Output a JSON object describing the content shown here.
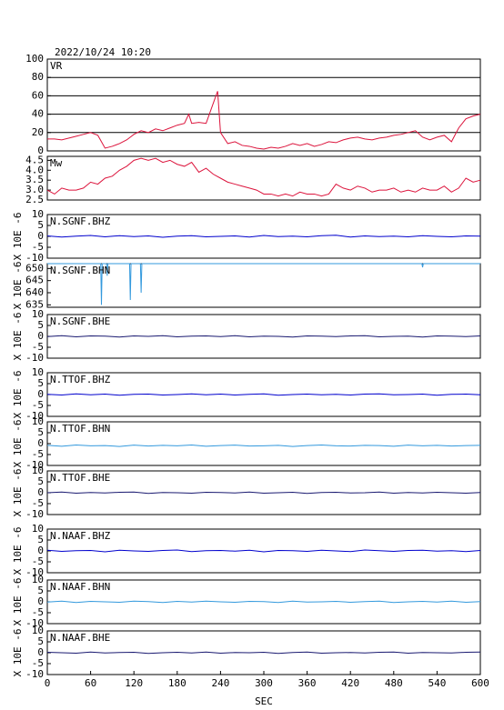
{
  "chart_data": [
    {
      "type": "line",
      "title": "2022/10/24 10:20",
      "xlim": [
        0,
        600
      ],
      "ylim": [
        0,
        100
      ],
      "yticks": [
        0,
        20,
        40,
        60,
        80,
        100
      ],
      "grid": true,
      "x": [
        0,
        10,
        20,
        30,
        40,
        50,
        60,
        70,
        80,
        90,
        100,
        110,
        120,
        130,
        140,
        150,
        160,
        170,
        180,
        190,
        196,
        200,
        210,
        220,
        230,
        236,
        240,
        250,
        260,
        270,
        280,
        290,
        300,
        310,
        320,
        330,
        340,
        350,
        360,
        370,
        380,
        390,
        400,
        410,
        420,
        430,
        440,
        450,
        460,
        470,
        480,
        490,
        500,
        510,
        520,
        530,
        540,
        550,
        560,
        570,
        580,
        590,
        600
      ],
      "series": [
        {
          "name": "VR",
          "color": "#dc143c",
          "values": [
            13,
            13,
            12,
            14,
            16,
            18,
            20,
            17,
            3,
            5,
            8,
            12,
            18,
            22,
            20,
            24,
            22,
            25,
            28,
            30,
            40,
            30,
            31,
            30,
            52,
            65,
            20,
            8,
            10,
            6,
            5,
            3,
            2,
            4,
            3,
            5,
            8,
            6,
            8,
            5,
            7,
            10,
            9,
            12,
            14,
            15,
            13,
            12,
            14,
            15,
            17,
            18,
            20,
            22,
            15,
            12,
            15,
            17,
            10,
            25,
            35,
            38,
            40
          ]
        }
      ]
    },
    {
      "type": "line",
      "xlim": [
        0,
        600
      ],
      "ylim": [
        2.5,
        4.7
      ],
      "yticks": [
        {
          "value": 2.5,
          "label": "2.5"
        },
        {
          "value": 3.0,
          "label": "3.0"
        },
        {
          "value": 3.5,
          "label": "3.5"
        },
        {
          "value": 4.0,
          "label": "4.0"
        },
        {
          "value": 4.5,
          "label": "4.5"
        }
      ],
      "x": [
        0,
        10,
        20,
        30,
        40,
        50,
        60,
        70,
        80,
        90,
        100,
        110,
        120,
        130,
        140,
        150,
        160,
        170,
        180,
        190,
        200,
        210,
        220,
        230,
        240,
        250,
        260,
        270,
        280,
        290,
        300,
        310,
        320,
        330,
        340,
        350,
        360,
        370,
        380,
        390,
        400,
        410,
        420,
        430,
        440,
        450,
        460,
        470,
        480,
        490,
        500,
        510,
        520,
        530,
        540,
        550,
        560,
        570,
        580,
        590,
        600
      ],
      "series": [
        {
          "name": "Mw",
          "color": "#dc143c",
          "values": [
            3.0,
            2.8,
            3.1,
            3.0,
            3.0,
            3.1,
            3.4,
            3.3,
            3.6,
            3.7,
            4.0,
            4.2,
            4.5,
            4.6,
            4.5,
            4.6,
            4.4,
            4.5,
            4.3,
            4.2,
            4.4,
            3.9,
            4.1,
            3.8,
            3.6,
            3.4,
            3.3,
            3.2,
            3.1,
            3.0,
            2.8,
            2.8,
            2.7,
            2.8,
            2.7,
            2.9,
            2.8,
            2.8,
            2.7,
            2.8,
            3.3,
            3.1,
            3.0,
            3.2,
            3.1,
            2.9,
            3.0,
            3.0,
            3.1,
            2.9,
            3.0,
            2.9,
            3.1,
            3.0,
            3.0,
            3.2,
            2.9,
            3.1,
            3.6,
            3.4,
            3.5
          ]
        }
      ]
    },
    {
      "type": "line",
      "xlim": [
        0,
        600
      ],
      "ylim": [
        -10,
        10
      ],
      "yticks": [
        -10,
        -5,
        0,
        5,
        10
      ],
      "ylabel": "X 10E -6",
      "x": [
        0,
        20,
        40,
        60,
        80,
        100,
        120,
        140,
        160,
        180,
        200,
        220,
        240,
        260,
        280,
        300,
        320,
        340,
        360,
        380,
        400,
        420,
        440,
        460,
        480,
        500,
        520,
        540,
        560,
        580,
        600
      ],
      "series": [
        {
          "name": "N.SGNF.BHZ",
          "color": "#0000cd",
          "values": [
            0.2,
            -0.3,
            0.1,
            0.4,
            -0.2,
            0.3,
            -0.1,
            0.2,
            -0.4,
            0.1,
            0.3,
            -0.2,
            0.0,
            0.2,
            -0.3,
            0.4,
            -0.1,
            0.1,
            -0.2,
            0.3,
            0.5,
            -0.3,
            0.2,
            -0.1,
            0.1,
            -0.2,
            0.3,
            0.0,
            -0.2,
            0.2,
            0.1
          ]
        }
      ]
    },
    {
      "type": "line",
      "xlim": [
        0,
        600
      ],
      "ylim": [
        634,
        652
      ],
      "yticks": [
        635,
        640,
        645,
        650
      ],
      "ylabel": "X 10E -6",
      "x": [
        0,
        74,
        75,
        76,
        82,
        83,
        84,
        114,
        115,
        116,
        129,
        130,
        131,
        519,
        520,
        521,
        600
      ],
      "series": [
        {
          "name": "N.SGNF.BHN",
          "color": "#3399dd",
          "values": [
            652,
            652,
            635,
            652,
            652,
            647,
            652,
            652,
            637,
            652,
            652,
            640,
            652,
            652,
            650.5,
            652,
            652
          ]
        }
      ]
    },
    {
      "type": "line",
      "xlim": [
        0,
        600
      ],
      "ylim": [
        -10,
        10
      ],
      "yticks": [
        -10,
        -5,
        0,
        5,
        10
      ],
      "ylabel": "X 10E -6",
      "x": [
        0,
        20,
        40,
        60,
        80,
        100,
        120,
        140,
        160,
        180,
        200,
        220,
        240,
        260,
        280,
        300,
        320,
        340,
        360,
        380,
        400,
        420,
        440,
        460,
        480,
        500,
        520,
        540,
        560,
        580,
        600
      ],
      "series": [
        {
          "name": "N.SGNF.BHE",
          "color": "#191970",
          "values": [
            -0.1,
            0.3,
            -0.2,
            0.2,
            0.1,
            -0.3,
            0.2,
            0.0,
            0.3,
            -0.2,
            0.1,
            0.2,
            -0.1,
            0.3,
            -0.2,
            0.1,
            0.0,
            -0.3,
            0.2,
            0.1,
            -0.1,
            0.2,
            0.3,
            -0.2,
            0.0,
            0.1,
            -0.3,
            0.2,
            0.1,
            -0.1,
            0.2
          ]
        }
      ]
    },
    {
      "type": "line",
      "xlim": [
        0,
        600
      ],
      "ylim": [
        -10,
        10
      ],
      "yticks": [
        -10,
        -5,
        0,
        5,
        10
      ],
      "ylabel": "X 10E -6",
      "x": [
        0,
        20,
        40,
        60,
        80,
        100,
        120,
        140,
        160,
        180,
        200,
        220,
        240,
        260,
        280,
        300,
        320,
        340,
        360,
        380,
        400,
        420,
        440,
        460,
        480,
        500,
        520,
        540,
        560,
        580,
        600
      ],
      "series": [
        {
          "name": "N.TTOF.BHZ",
          "color": "#0000cd",
          "values": [
            0.1,
            -0.2,
            0.3,
            -0.1,
            0.2,
            -0.3,
            0.1,
            0.2,
            -0.2,
            0.0,
            0.3,
            -0.1,
            0.2,
            -0.2,
            0.1,
            0.3,
            -0.3,
            0.0,
            0.2,
            -0.1,
            0.1,
            -0.2,
            0.2,
            0.3,
            -0.1,
            0.0,
            0.2,
            -0.3,
            0.1,
            0.2,
            -0.1
          ]
        }
      ]
    },
    {
      "type": "line",
      "xlim": [
        0,
        600
      ],
      "ylim": [
        -10,
        10
      ],
      "yticks": [
        -10,
        -5,
        0,
        5,
        10
      ],
      "ylabel": "X 10E -6",
      "x": [
        0,
        20,
        40,
        60,
        80,
        100,
        120,
        140,
        160,
        180,
        200,
        220,
        240,
        260,
        280,
        300,
        320,
        340,
        360,
        380,
        400,
        420,
        440,
        460,
        480,
        500,
        520,
        540,
        560,
        580,
        600
      ],
      "series": [
        {
          "name": "N.TTOF.BHN",
          "color": "#3399dd",
          "values": [
            -0.8,
            -1.2,
            -0.6,
            -1.0,
            -0.9,
            -1.3,
            -0.7,
            -1.1,
            -0.8,
            -1.0,
            -0.6,
            -1.2,
            -0.9,
            -0.7,
            -1.1,
            -1.0,
            -0.8,
            -1.3,
            -0.9,
            -0.6,
            -1.0,
            -1.1,
            -0.8,
            -0.9,
            -1.2,
            -0.7,
            -1.0,
            -0.8,
            -1.1,
            -0.9,
            -0.8
          ]
        }
      ]
    },
    {
      "type": "line",
      "xlim": [
        0,
        600
      ],
      "ylim": [
        -10,
        10
      ],
      "yticks": [
        -10,
        -5,
        0,
        5,
        10
      ],
      "ylabel": "X 10E -6",
      "x": [
        0,
        20,
        40,
        60,
        80,
        100,
        120,
        140,
        160,
        180,
        200,
        220,
        240,
        260,
        280,
        300,
        320,
        340,
        360,
        380,
        400,
        420,
        440,
        460,
        480,
        500,
        520,
        540,
        560,
        580,
        600
      ],
      "series": [
        {
          "name": "N.TTOF.BHE",
          "color": "#191970",
          "values": [
            0.0,
            0.3,
            -0.2,
            0.1,
            -0.1,
            0.2,
            0.3,
            -0.3,
            0.1,
            0.0,
            -0.2,
            0.2,
            0.1,
            -0.1,
            0.3,
            -0.2,
            0.0,
            0.2,
            -0.3,
            0.1,
            0.2,
            -0.1,
            0.0,
            0.3,
            -0.2,
            0.1,
            -0.1,
            0.2,
            0.0,
            -0.2,
            0.1
          ]
        }
      ]
    },
    {
      "type": "line",
      "xlim": [
        0,
        600
      ],
      "ylim": [
        -10,
        10
      ],
      "yticks": [
        -10,
        -5,
        0,
        5,
        10
      ],
      "ylabel": "X 10E -6",
      "x": [
        0,
        20,
        40,
        60,
        80,
        100,
        120,
        140,
        160,
        180,
        200,
        220,
        240,
        260,
        280,
        300,
        320,
        340,
        360,
        380,
        400,
        420,
        440,
        460,
        480,
        500,
        520,
        540,
        560,
        580,
        600
      ],
      "series": [
        {
          "name": "N.NAAF.BHZ",
          "color": "#0000cd",
          "values": [
            0.3,
            -0.2,
            0.1,
            0.2,
            -0.4,
            0.3,
            0.0,
            -0.2,
            0.2,
            0.4,
            -0.3,
            0.1,
            0.2,
            -0.1,
            0.3,
            -0.4,
            0.2,
            0.1,
            -0.2,
            0.3,
            0.0,
            -0.3,
            0.4,
            0.1,
            -0.2,
            0.2,
            0.3,
            -0.1,
            0.1,
            -0.3,
            0.2
          ]
        }
      ]
    },
    {
      "type": "line",
      "xlim": [
        0,
        600
      ],
      "ylim": [
        -10,
        10
      ],
      "yticks": [
        -10,
        -5,
        0,
        5,
        10
      ],
      "ylabel": "X 10E -6",
      "x": [
        0,
        20,
        40,
        60,
        80,
        100,
        120,
        140,
        160,
        180,
        200,
        220,
        240,
        260,
        280,
        300,
        320,
        340,
        360,
        380,
        400,
        420,
        440,
        460,
        480,
        500,
        520,
        540,
        560,
        580,
        600
      ],
      "series": [
        {
          "name": "N.NAAF.BHN",
          "color": "#3399dd",
          "values": [
            -0.1,
            0.3,
            -0.3,
            0.2,
            0.0,
            -0.2,
            0.3,
            0.1,
            -0.3,
            0.2,
            -0.1,
            0.3,
            0.0,
            -0.2,
            0.2,
            0.1,
            -0.3,
            0.3,
            -0.1,
            0.0,
            0.2,
            -0.2,
            0.1,
            0.3,
            -0.3,
            0.0,
            0.2,
            -0.1,
            0.3,
            -0.2,
            0.1
          ]
        }
      ]
    },
    {
      "type": "line",
      "xlim": [
        0,
        600
      ],
      "ylim": [
        -10,
        10
      ],
      "yticks": [
        -10,
        -5,
        0,
        5,
        10
      ],
      "ylabel": "X 10E -6",
      "xticks": [
        0,
        60,
        120,
        180,
        240,
        300,
        360,
        420,
        480,
        540,
        600
      ],
      "xlabel": "SEC",
      "x": [
        0,
        20,
        40,
        60,
        80,
        100,
        120,
        140,
        160,
        180,
        200,
        220,
        240,
        260,
        280,
        300,
        320,
        340,
        360,
        380,
        400,
        420,
        440,
        460,
        480,
        500,
        520,
        540,
        560,
        580,
        600
      ],
      "series": [
        {
          "name": "N.NAAF.BHE",
          "color": "#191970",
          "values": [
            0.2,
            0.0,
            -0.2,
            0.3,
            -0.1,
            0.1,
            0.2,
            -0.3,
            0.0,
            0.2,
            -0.1,
            0.3,
            -0.2,
            0.1,
            0.0,
            0.2,
            -0.3,
            0.1,
            0.3,
            -0.2,
            0.0,
            0.1,
            -0.1,
            0.2,
            0.3,
            -0.2,
            0.1,
            0.0,
            -0.1,
            0.2,
            0.3
          ]
        }
      ]
    }
  ]
}
